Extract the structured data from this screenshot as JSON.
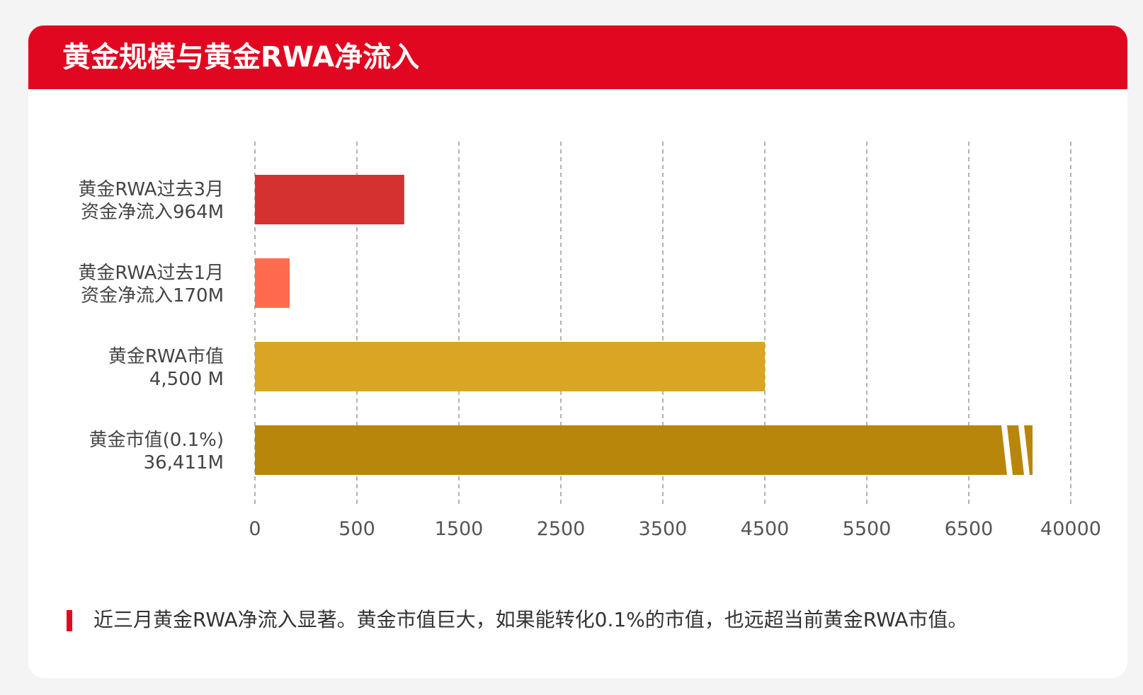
{
  "header": {
    "title": "黄金规模与黄金RWA净流入"
  },
  "chart_data": {
    "type": "bar",
    "orientation": "horizontal",
    "categories": [
      [
        "黄金RWA过去3月",
        "资金净流入964M"
      ],
      [
        "黄金RWA过去1月",
        "资金净流入170M"
      ],
      [
        "黄金RWA市值",
        "4,500 M"
      ],
      [
        "黄金市值(0.1%)",
        "36,411M"
      ]
    ],
    "values": [
      964,
      170,
      4500,
      36411
    ],
    "colors": [
      "#d63131",
      "#ff6b4f",
      "#d9a523",
      "#b8860b"
    ],
    "x_ticks": [
      "0",
      "500",
      "1500",
      "2500",
      "3500",
      "4500",
      "5500",
      "6500",
      "40000"
    ],
    "axis_break": true,
    "grid": true,
    "xlabel": "",
    "ylabel": ""
  },
  "note": {
    "text": "近三月黄金RWA净流入显著。黄金市值巨大，如果能转化0.1%的市值，也远超当前黄金RWA市值。"
  },
  "colors": {
    "accent": "#e10720",
    "grid": "#9a9a9a",
    "label": "#444444",
    "tick": "#555555"
  }
}
